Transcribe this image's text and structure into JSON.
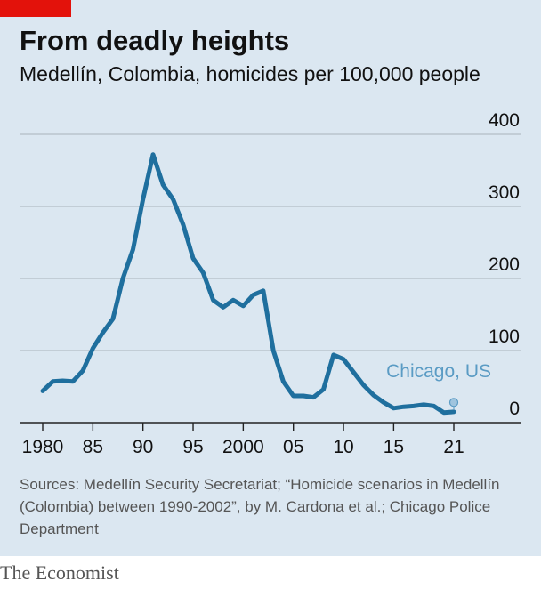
{
  "header": {
    "title": "From deadly heights",
    "subtitle": "Medellín, Colombia, homicides per 100,000 people"
  },
  "source_text": "Sources: Medellín Security Secretariat; “Homicide scenarios in Medellín (Colombia) between 1990-2002”, by M. Cardona et al.; Chicago Police Department",
  "brand": "The Economist",
  "colors": {
    "line": "#1f6f9e",
    "annotation": "#5a9bc4",
    "accent": "#e3120b",
    "background": "#dbe7f1"
  },
  "chart_data": {
    "type": "line",
    "title": "From deadly heights",
    "subtitle": "Medellín, Colombia, homicides per 100,000 people",
    "xlim": [
      1980,
      2021
    ],
    "ylim": [
      0,
      400
    ],
    "grid": true,
    "x_ticks": [
      {
        "x": 1980,
        "label": "1980"
      },
      {
        "x": 1985,
        "label": "85"
      },
      {
        "x": 1990,
        "label": "90"
      },
      {
        "x": 1995,
        "label": "95"
      },
      {
        "x": 2000,
        "label": "2000"
      },
      {
        "x": 2005,
        "label": "05"
      },
      {
        "x": 2010,
        "label": "10"
      },
      {
        "x": 2015,
        "label": "15"
      },
      {
        "x": 2021,
        "label": "21"
      }
    ],
    "y_ticks": [
      {
        "y": 0,
        "label": "0"
      },
      {
        "y": 100,
        "label": "100"
      },
      {
        "y": 200,
        "label": "200"
      },
      {
        "y": 300,
        "label": "300"
      },
      {
        "y": 400,
        "label": "400"
      }
    ],
    "series": [
      {
        "x": [
          1980,
          1981,
          1982,
          1983,
          1984,
          1985,
          1986,
          1987,
          1988,
          1989,
          1990,
          1991,
          1992,
          1993,
          1994,
          1995,
          1996,
          1997,
          1998,
          1999,
          2000,
          2001,
          2002,
          2003,
          2004,
          2005,
          2006,
          2007,
          2008,
          2009,
          2010,
          2011,
          2012,
          2013,
          2014,
          2015,
          2016,
          2017,
          2018,
          2019,
          2020,
          2021
        ],
        "values": [
          44,
          57,
          58,
          57,
          72,
          103,
          125,
          144,
          200,
          240,
          310,
          372,
          330,
          310,
          275,
          228,
          208,
          170,
          160,
          170,
          162,
          177,
          183,
          100,
          57,
          37,
          37,
          35,
          46,
          94,
          88,
          70,
          52,
          38,
          28,
          20,
          22,
          23,
          25,
          23,
          14,
          15
        ]
      }
    ],
    "annotations": [
      {
        "text": "Chicago, US",
        "x": 2021,
        "y": 28
      }
    ]
  }
}
